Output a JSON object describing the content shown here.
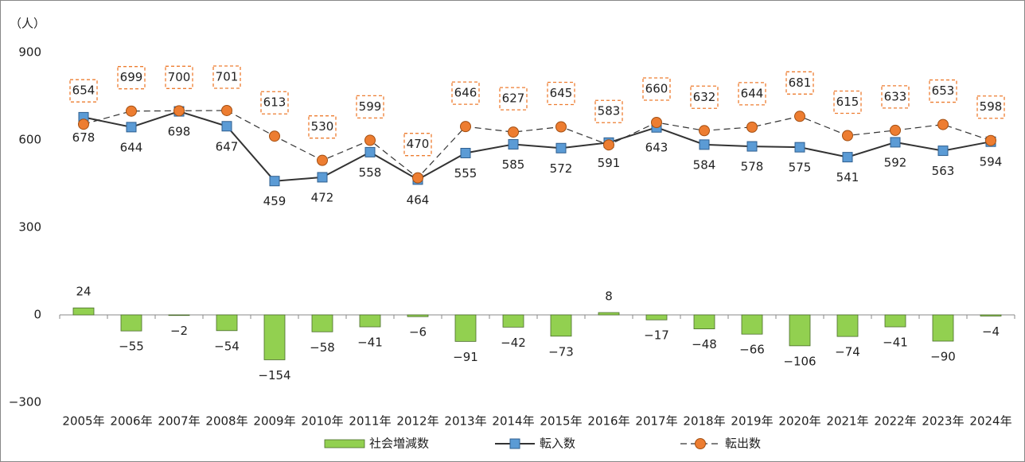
{
  "chart_data": {
    "type": "bar-line",
    "y_label": "（人）",
    "categories": [
      "2005年",
      "2006年",
      "2007年",
      "2008年",
      "2009年",
      "2010年",
      "2011年",
      "2012年",
      "2013年",
      "2014年",
      "2015年",
      "2016年",
      "2017年",
      "2018年",
      "2019年",
      "2020年",
      "2021年",
      "2022年",
      "2023年",
      "2024年"
    ],
    "ylim": [
      -300,
      900
    ],
    "yticks": [
      {
        "value": -300,
        "label": "−300"
      },
      0,
      300,
      600,
      900
    ],
    "grid": false,
    "legend": "bottom",
    "series": [
      {
        "name": "社会増減数",
        "type": "bar",
        "color": "#92d050",
        "negative_label_color": "#ff0000",
        "values": [
          24,
          -55,
          -2,
          -54,
          -154,
          -58,
          -41,
          -6,
          -91,
          -42,
          -73,
          8,
          -17,
          -48,
          -66,
          -106,
          -74,
          -41,
          -90,
          -4
        ],
        "value_labels": [
          "24",
          "−55",
          "−2",
          "−54",
          "−154",
          "−58",
          "−41",
          "−6",
          "−91",
          "−42",
          "−73",
          "8",
          "−17",
          "−48",
          "−66",
          "−106",
          "−74",
          "−41",
          "−90",
          "−4"
        ]
      },
      {
        "name": "転入数",
        "type": "line",
        "color": "#333333",
        "marker_color": "#5b9bd5",
        "marker": "square",
        "values": [
          678,
          644,
          698,
          647,
          459,
          472,
          558,
          464,
          555,
          585,
          572,
          591,
          643,
          584,
          578,
          575,
          541,
          592,
          563,
          594
        ]
      },
      {
        "name": "転出数",
        "type": "line",
        "color": "#333333",
        "marker_color": "#ed7d31",
        "marker": "circle",
        "dashed": true,
        "values": [
          654,
          699,
          700,
          701,
          613,
          530,
          599,
          470,
          646,
          627,
          645,
          583,
          660,
          632,
          644,
          681,
          615,
          633,
          653,
          598
        ]
      }
    ]
  }
}
